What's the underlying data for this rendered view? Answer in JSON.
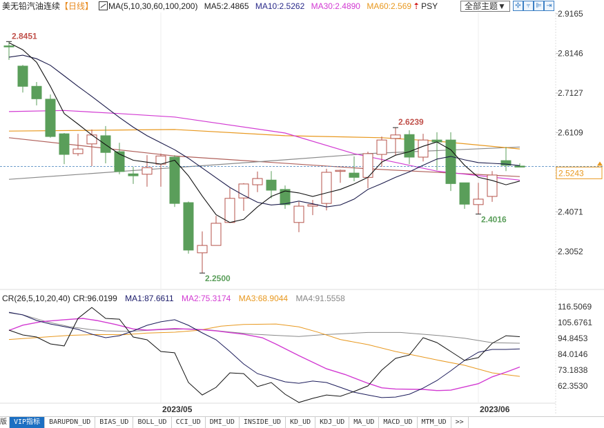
{
  "header": {
    "title": "美无铅汽油连续",
    "period": "【日线】",
    "ma_params": "MA(5,10,30,60,100,200)",
    "ma5": "MA5:2.4865",
    "ma10": "MA10:2.5262",
    "ma30": "MA30:2.4890",
    "ma60": "MA60:2.569",
    "more_arrow": "⇡",
    "psy": "PSY",
    "theme_button": "全部主题▼",
    "tool_buttons": [
      "✣",
      "⫧",
      "⊫",
      "⇥"
    ]
  },
  "sub_header": {
    "cr_params": "CR(26,5,10,20,40)",
    "cr": "CR:96.0199",
    "ma1": "MA1:87.6611",
    "ma2": "MA2:75.3174",
    "ma3": "MA3:68.9044",
    "ma4": "MA4:91.5558"
  },
  "tabs": [
    "版",
    "VIP指标",
    "BARUPDN_UD",
    "BIAS_UD",
    "BOLL_UD",
    "CCI_UD",
    "DMI_UD",
    "INSIDE_UD",
    "KD_UD",
    "KDJ_UD",
    "MA_UD",
    "MACD_UD",
    "MTM_UD",
    ">>"
  ],
  "selected_tab": 1,
  "colors": {
    "up": "#b5524a",
    "down": "#5a9e5a",
    "ma5": "#111111",
    "ma10": "#1a1a4a",
    "ma30": "#d23ad2",
    "ma60": "#e8981e",
    "ma100": "#8a8a8a",
    "ma200": "#b0605a",
    "cr": "#111111",
    "cr_ma1": "#1a1a5a",
    "cr_ma2": "#d23ad2",
    "cr_ma3": "#e8981e",
    "cr_ma4": "#888888",
    "last_price": "#e8981e",
    "last_line": "#3a7ab8"
  },
  "chart_data": [
    {
      "type": "candlestick",
      "title": "美无铅汽油连续 日线",
      "yticks": [
        "2.9165",
        "2.8146",
        "2.7127",
        "2.6109",
        "2.4071",
        "2.3052"
      ],
      "ylim": [
        2.23,
        2.9165
      ],
      "last_price": "2.5243",
      "annotations": [
        {
          "text": "2.8451",
          "index": 0,
          "value": 2.8451,
          "kind": "high"
        },
        {
          "text": "2.6239",
          "index": 28,
          "value": 2.6239,
          "kind": "high"
        },
        {
          "text": "2.2500",
          "index": 14,
          "value": 2.25,
          "kind": "low"
        },
        {
          "text": "2.4016",
          "index": 34,
          "value": 2.4016,
          "kind": "low"
        }
      ],
      "xlabels": [
        {
          "text": "2023/05",
          "index": 11
        },
        {
          "text": "2023/06",
          "index": 34
        }
      ],
      "ohlc": [
        [
          2.834,
          2.845,
          2.798,
          2.832
        ],
        [
          2.782,
          2.785,
          2.714,
          2.73
        ],
        [
          2.73,
          2.741,
          2.681,
          2.698
        ],
        [
          2.697,
          2.709,
          2.598,
          2.601
        ],
        [
          2.608,
          2.61,
          2.53,
          2.555
        ],
        [
          2.557,
          2.608,
          2.551,
          2.569
        ],
        [
          2.582,
          2.619,
          2.525,
          2.605
        ],
        [
          2.603,
          2.628,
          2.532,
          2.56
        ],
        [
          2.562,
          2.585,
          2.504,
          2.511
        ],
        [
          2.505,
          2.523,
          2.479,
          2.5
        ],
        [
          2.504,
          2.553,
          2.472,
          2.521
        ],
        [
          2.53,
          2.557,
          2.472,
          2.551
        ],
        [
          2.548,
          2.553,
          2.42,
          2.429
        ],
        [
          2.431,
          2.434,
          2.3,
          2.309
        ],
        [
          2.302,
          2.357,
          2.25,
          2.321
        ],
        [
          2.321,
          2.397,
          2.321,
          2.378
        ],
        [
          2.38,
          2.468,
          2.38,
          2.442
        ],
        [
          2.443,
          2.481,
          2.41,
          2.479
        ],
        [
          2.477,
          2.511,
          2.458,
          2.493
        ],
        [
          2.489,
          2.512,
          2.442,
          2.463
        ],
        [
          2.465,
          2.475,
          2.415,
          2.426
        ],
        [
          2.38,
          2.433,
          2.355,
          2.422
        ],
        [
          2.422,
          2.438,
          2.399,
          2.426
        ],
        [
          2.429,
          2.518,
          2.411,
          2.509
        ],
        [
          2.512,
          2.516,
          2.482,
          2.514
        ],
        [
          2.507,
          2.55,
          2.486,
          2.496
        ],
        [
          2.496,
          2.562,
          2.468,
          2.557
        ],
        [
          2.555,
          2.601,
          2.523,
          2.592
        ],
        [
          2.596,
          2.6239,
          2.553,
          2.605
        ],
        [
          2.606,
          2.617,
          2.53,
          2.548
        ],
        [
          2.548,
          2.608,
          2.537,
          2.592
        ],
        [
          2.592,
          2.612,
          2.514,
          2.587
        ],
        [
          2.592,
          2.612,
          2.461,
          2.48
        ],
        [
          2.482,
          2.482,
          2.415,
          2.427
        ],
        [
          2.426,
          2.482,
          2.4016,
          2.44
        ],
        [
          2.447,
          2.512,
          2.433,
          2.502
        ],
        [
          2.539,
          2.574,
          2.512,
          2.527
        ],
        [
          2.525,
          2.532,
          2.524,
          2.5243
        ]
      ],
      "series": [
        {
          "name": "MA5",
          "values": [
            2.842,
            2.824,
            2.792,
            2.73,
            2.66,
            2.633,
            2.605,
            2.58,
            2.556,
            2.54,
            2.535,
            2.53,
            2.54,
            2.5,
            2.448,
            2.4,
            2.38,
            2.388,
            2.42,
            2.447,
            2.461,
            2.456,
            2.447,
            2.456,
            2.465,
            2.479,
            2.496,
            2.535,
            2.553,
            2.562,
            2.576,
            2.587,
            2.567,
            2.527,
            2.496,
            2.488,
            2.477,
            2.4865
          ]
        },
        {
          "name": "MA10",
          "values": [
            2.805,
            2.81,
            2.801,
            2.784,
            2.757,
            2.73,
            2.704,
            2.677,
            2.65,
            2.625,
            2.603,
            2.585,
            2.567,
            2.545,
            2.52,
            2.495,
            2.47,
            2.45,
            2.432,
            2.425,
            2.428,
            2.435,
            2.428,
            2.42,
            2.425,
            2.44,
            2.465,
            2.48,
            2.496,
            2.51,
            2.527,
            2.543,
            2.55,
            2.541,
            2.534,
            2.532,
            2.53,
            2.5262
          ]
        },
        {
          "name": "MA30",
          "points": [
            [
              0,
              2.665
            ],
            [
              4,
              2.668
            ],
            [
              8,
              2.66
            ],
            [
              12,
              2.651
            ],
            [
              20,
              2.61
            ],
            [
              25,
              2.557
            ],
            [
              31,
              2.512
            ],
            [
              37,
              2.489
            ]
          ]
        },
        {
          "name": "MA60",
          "points": [
            [
              0,
              2.615
            ],
            [
              12,
              2.619
            ],
            [
              20,
              2.603
            ],
            [
              27,
              2.598
            ],
            [
              31,
              2.589
            ],
            [
              37,
              2.569
            ]
          ]
        },
        {
          "name": "MA100",
          "points": [
            [
              0,
              2.491
            ],
            [
              12,
              2.521
            ],
            [
              20,
              2.541
            ],
            [
              26,
              2.557
            ],
            [
              37,
              2.574
            ]
          ]
        },
        {
          "name": "MA200",
          "points": [
            [
              0,
              2.598
            ],
            [
              12,
              2.551
            ],
            [
              26,
              2.518
            ],
            [
              37,
              2.498
            ]
          ]
        }
      ]
    },
    {
      "type": "line",
      "title": "CR(26,5,10,20,40)",
      "yticks": [
        "116.5069",
        "105.6761",
        "94.8453",
        "84.0146",
        "73.1838",
        "62.3530"
      ],
      "ylim": [
        48,
        116.5069
      ],
      "series": [
        {
          "name": "CR",
          "values": [
            100.5,
            97.2,
            95.8,
            91.1,
            89.7,
            108.5,
            116.0,
            108.5,
            108.0,
            95.8,
            93.9,
            85.9,
            85.0,
            64.7,
            56.2,
            61.4,
            71.3,
            70.8,
            61.9,
            64.7,
            56.7,
            51.1,
            53.9,
            56.2,
            55.3,
            58.6,
            62.4,
            73.2,
            81.2,
            83.5,
            95.3,
            92.0,
            85.9,
            79.8,
            81.7,
            91.5,
            96.7,
            96.02
          ]
        },
        {
          "name": "MA1",
          "values": [
            112.7,
            110.9,
            107.1,
            104.7,
            102.9,
            101.0,
            97.7,
            95.3,
            96.7,
            100.0,
            103.8,
            106.2,
            107.6,
            103.8,
            98.6,
            93.9,
            85.9,
            77.4,
            70.8,
            68.0,
            65.2,
            64.2,
            65.7,
            64.7,
            61.4,
            58.1,
            56.2,
            54.4,
            54.8,
            56.7,
            60.9,
            66.1,
            72.7,
            79.8,
            85.4,
            87.3,
            87.3,
            87.66
          ]
        },
        {
          "name": "MA2",
          "points": [
            [
              0,
              100.3
            ],
            [
              1,
              103.9
            ],
            [
              2.35,
              106.3
            ],
            [
              4,
              107.6
            ],
            [
              5.35,
              108.5
            ],
            [
              6.35,
              107.1
            ],
            [
              7.7,
              104.4
            ],
            [
              9,
              101.3
            ],
            [
              10,
              100.5
            ],
            [
              12,
              101.6
            ],
            [
              14,
              100.8
            ],
            [
              15,
              100.0
            ],
            [
              16,
              98.8
            ],
            [
              17,
              97.7
            ],
            [
              18.35,
              95.3
            ],
            [
              19.35,
              90.9
            ],
            [
              21,
              83.1
            ],
            [
              23,
              74.1
            ],
            [
              24.35,
              70.2
            ],
            [
              26,
              64.2
            ],
            [
              27,
              61.1
            ],
            [
              28,
              60.3
            ],
            [
              30,
              60.0
            ],
            [
              31,
              59.2
            ],
            [
              32,
              59.5
            ],
            [
              34,
              63.9
            ],
            [
              35,
              68.6
            ],
            [
              36,
              71.8
            ],
            [
              37,
              75.32
            ]
          ]
        },
        {
          "name": "MA3",
          "points": [
            [
              0,
              94.1
            ],
            [
              2.35,
              95.6
            ],
            [
              4.35,
              96.9
            ],
            [
              6.35,
              97.5
            ],
            [
              8.35,
              97.4
            ],
            [
              10,
              98.5
            ],
            [
              12,
              99.1
            ],
            [
              13.7,
              100.3
            ],
            [
              15.35,
              103.2
            ],
            [
              17,
              104.4
            ],
            [
              19.35,
              104.7
            ],
            [
              21,
              102.7
            ],
            [
              22.35,
              99.2
            ],
            [
              24,
              94.1
            ],
            [
              26,
              90.6
            ],
            [
              28,
              85.9
            ],
            [
              29,
              84.0
            ],
            [
              31,
              80.1
            ],
            [
              33,
              76.5
            ],
            [
              35,
              71.3
            ],
            [
              37,
              68.9
            ]
          ]
        },
        {
          "name": "MA4",
          "points": [
            [
              0,
              112.3
            ],
            [
              1,
              111.0
            ],
            [
              2.7,
              106.3
            ],
            [
              4.35,
              102.9
            ],
            [
              6,
              100.8
            ],
            [
              7,
              100.0
            ],
            [
              8.7,
              99.7
            ],
            [
              11,
              100.8
            ],
            [
              13,
              101.3
            ],
            [
              14.35,
              100.8
            ],
            [
              16,
              99.2
            ],
            [
              17.7,
              97.7
            ],
            [
              19.35,
              96.9
            ],
            [
              21,
              96.1
            ],
            [
              22.7,
              97.4
            ],
            [
              26,
              98.9
            ],
            [
              28.35,
              98.9
            ],
            [
              31,
              96.9
            ],
            [
              33,
              95.0
            ],
            [
              35,
              91.9
            ],
            [
              37,
              91.56
            ]
          ]
        }
      ]
    }
  ]
}
